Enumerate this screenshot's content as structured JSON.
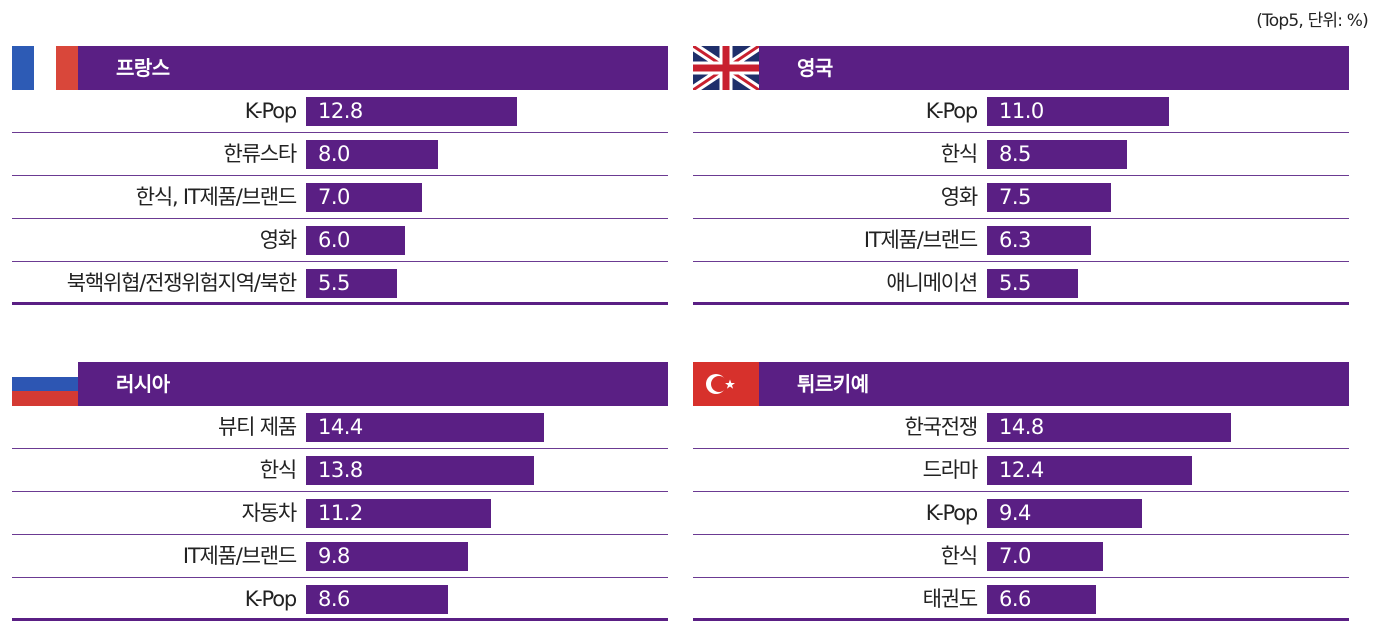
{
  "unit_note": "(Top5, 단위: %)",
  "colors": {
    "panel": "#5a1f84",
    "bar": "#5a1f84",
    "line": "#6b3a92",
    "value_text": "#ffffff"
  },
  "chart_data": [
    {
      "type": "bar",
      "orientation": "horizontal",
      "title": "프랑스",
      "flag": "france-flag-icon",
      "categories": [
        "K-Pop",
        "한류스타",
        "한식, IT제품/브랜드",
        "영화",
        "북핵위협/전쟁위험지역/북한"
      ],
      "values": [
        12.8,
        8.0,
        7.0,
        6.0,
        5.5
      ],
      "value_labels": [
        "12.8",
        "8.0",
        "7.0",
        "6.0",
        "5.5"
      ]
    },
    {
      "type": "bar",
      "orientation": "horizontal",
      "title": "영국",
      "flag": "uk-flag-icon",
      "categories": [
        "K-Pop",
        "한식",
        "영화",
        "IT제품/브랜드",
        "애니메이션"
      ],
      "values": [
        11.0,
        8.5,
        7.5,
        6.3,
        5.5
      ],
      "value_labels": [
        "11.0",
        "8.5",
        "7.5",
        "6.3",
        "5.5"
      ]
    },
    {
      "type": "bar",
      "orientation": "horizontal",
      "title": "러시아",
      "flag": "russia-flag-icon",
      "categories": [
        "뷰티 제품",
        "한식",
        "자동차",
        "IT제품/브랜드",
        "K-Pop"
      ],
      "values": [
        14.4,
        13.8,
        11.2,
        9.8,
        8.6
      ],
      "value_labels": [
        "14.4",
        "13.8",
        "11.2",
        "9.8",
        "8.6"
      ]
    },
    {
      "type": "bar",
      "orientation": "horizontal",
      "title": "튀르키예",
      "flag": "turkey-flag-icon",
      "categories": [
        "한국전쟁",
        "드라마",
        "K-Pop",
        "한식",
        "태권도"
      ],
      "values": [
        14.8,
        12.4,
        9.4,
        7.0,
        6.6
      ],
      "value_labels": [
        "14.8",
        "12.4",
        "9.4",
        "7.0",
        "6.6"
      ]
    }
  ]
}
